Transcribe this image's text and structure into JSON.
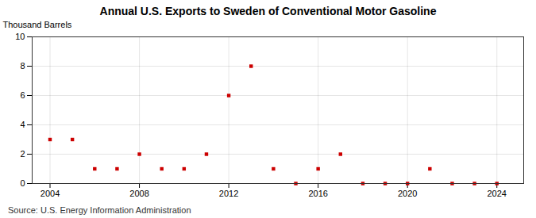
{
  "chart_data": {
    "type": "scatter",
    "title": "Annual U.S. Exports to Sweden of Conventional Motor Gasoline",
    "ylabel": "Thousand Barrels",
    "source": "Source: U.S. Energy Information Administration",
    "x": [
      2004,
      2005,
      2006,
      2007,
      2008,
      2009,
      2010,
      2011,
      2012,
      2013,
      2014,
      2015,
      2016,
      2017,
      2018,
      2019,
      2020,
      2021,
      2022,
      2023,
      2024
    ],
    "values": [
      3,
      3,
      1,
      1,
      2,
      1,
      1,
      2,
      6,
      8,
      1,
      0,
      1,
      2,
      0,
      0,
      0,
      1,
      0,
      0,
      0
    ],
    "color": "#cc0000",
    "marker": "square",
    "xlim": [
      2003.2,
      2025.2
    ],
    "xticks": [
      2004,
      2008,
      2012,
      2016,
      2020,
      2024
    ],
    "ylim": [
      0,
      10
    ],
    "yticks": [
      0,
      2,
      4,
      6,
      8,
      10
    ],
    "grid": true
  }
}
